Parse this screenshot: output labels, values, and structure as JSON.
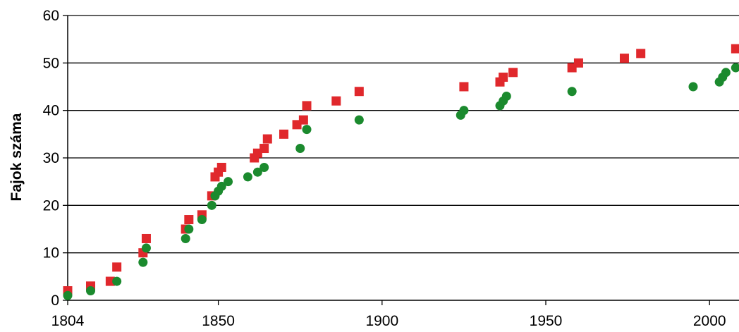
{
  "chart_data": {
    "type": "scatter",
    "title": "",
    "xlabel": "",
    "ylabel": "Fajok száma",
    "xlim": [
      1804,
      2009
    ],
    "ylim": [
      0,
      60
    ],
    "x_ticks": [
      1804,
      1850,
      1900,
      1950,
      2000
    ],
    "y_ticks": [
      0,
      10,
      20,
      30,
      40,
      50,
      60
    ],
    "grid": "horizontal",
    "legend": "none",
    "series": [
      {
        "marker": "square",
        "color": "#e0282c",
        "points": [
          [
            1804,
            2
          ],
          [
            1811,
            3
          ],
          [
            1817,
            4
          ],
          [
            1819,
            7
          ],
          [
            1827,
            10
          ],
          [
            1828,
            13
          ],
          [
            1840,
            15
          ],
          [
            1841,
            17
          ],
          [
            1845,
            18
          ],
          [
            1848,
            22
          ],
          [
            1849,
            26
          ],
          [
            1850,
            27
          ],
          [
            1851,
            28
          ],
          [
            1861,
            30
          ],
          [
            1862,
            31
          ],
          [
            1864,
            32
          ],
          [
            1865,
            34
          ],
          [
            1870,
            35
          ],
          [
            1874,
            37
          ],
          [
            1876,
            38
          ],
          [
            1877,
            41
          ],
          [
            1886,
            42
          ],
          [
            1893,
            44
          ],
          [
            1925,
            45
          ],
          [
            1936,
            46
          ],
          [
            1937,
            47
          ],
          [
            1940,
            48
          ],
          [
            1958,
            49
          ],
          [
            1960,
            50
          ],
          [
            1974,
            51
          ],
          [
            1979,
            52
          ],
          [
            2008,
            53
          ]
        ]
      },
      {
        "marker": "circle",
        "color": "#1b8a2e",
        "points": [
          [
            1804,
            1
          ],
          [
            1811,
            2
          ],
          [
            1819,
            4
          ],
          [
            1827,
            8
          ],
          [
            1828,
            11
          ],
          [
            1840,
            13
          ],
          [
            1841,
            15
          ],
          [
            1845,
            17
          ],
          [
            1848,
            20
          ],
          [
            1849,
            22
          ],
          [
            1850,
            23
          ],
          [
            1851,
            24
          ],
          [
            1853,
            25
          ],
          [
            1859,
            26
          ],
          [
            1862,
            27
          ],
          [
            1864,
            28
          ],
          [
            1875,
            32
          ],
          [
            1877,
            36
          ],
          [
            1893,
            38
          ],
          [
            1924,
            39
          ],
          [
            1925,
            40
          ],
          [
            1936,
            41
          ],
          [
            1937,
            42
          ],
          [
            1938,
            43
          ],
          [
            1958,
            44
          ],
          [
            1995,
            45
          ],
          [
            2003,
            46
          ],
          [
            2004,
            47
          ],
          [
            2005,
            48
          ],
          [
            2008,
            49
          ]
        ]
      }
    ]
  }
}
